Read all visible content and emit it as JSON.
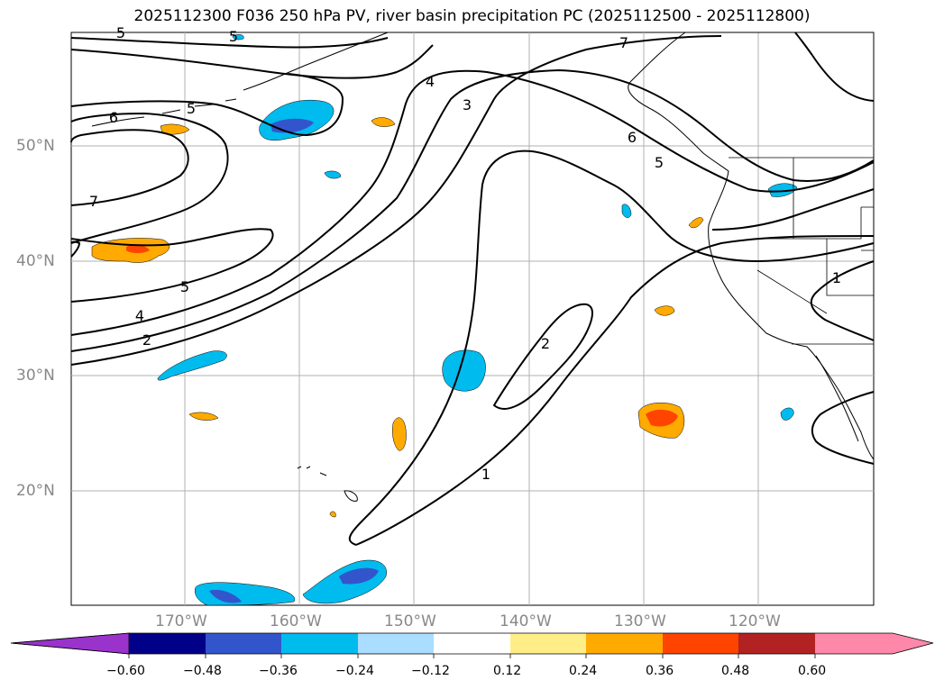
{
  "title": "2025112300 F036 250 hPa PV, river basin precipitation PC (2025112500 - 2025112800)",
  "lat_labels": [
    "50°N",
    "40°N",
    "30°N",
    "20°N"
  ],
  "lon_labels": [
    "170°W",
    "160°W",
    "150°W",
    "140°W",
    "130°W",
    "120°W"
  ],
  "contour_labels": [
    "5",
    "5",
    "7",
    "6",
    "5",
    "4",
    "3",
    "6",
    "5",
    "7",
    "5",
    "4",
    "2",
    "2",
    "1",
    "1"
  ],
  "colorbar": {
    "ticks": [
      "−0.60",
      "−0.48",
      "−0.36",
      "−0.24",
      "−0.12",
      "0.12",
      "0.24",
      "0.36",
      "0.48",
      "0.60"
    ],
    "colors": [
      "#9933cc",
      "#000088",
      "#3355cc",
      "#00bbee",
      "#aaddff",
      "#ffffff",
      "#ffee88",
      "#ffaa00",
      "#ff4400",
      "#b22222",
      "#ff88aa",
      "#ff88aa"
    ]
  },
  "colors": {
    "land_outline": "#000000",
    "grid": "#b0b0b0",
    "pv_contour": "#000000"
  }
}
